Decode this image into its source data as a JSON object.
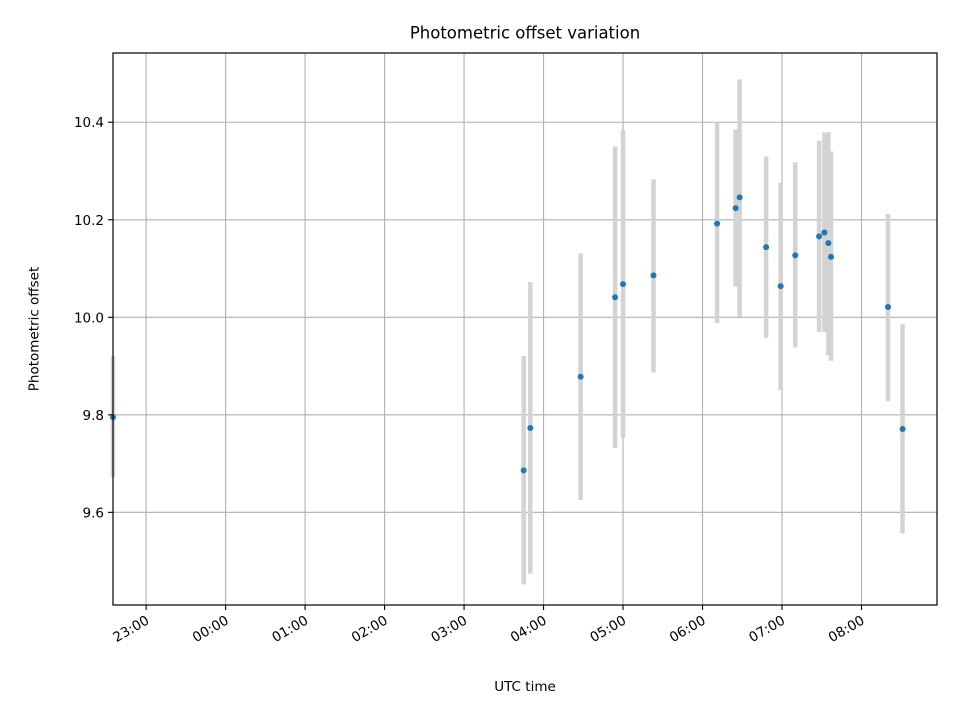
{
  "chart_data": {
    "type": "scatter",
    "title": "Photometric offset variation",
    "xlabel": "UTC time",
    "ylabel": "Photometric offset",
    "x_axis_type": "time",
    "xlim": [
      "22:35",
      "08:57"
    ],
    "ylim": [
      9.41,
      10.542
    ],
    "x_ticks": [
      "23:00",
      "00:00",
      "01:00",
      "02:00",
      "03:00",
      "04:00",
      "05:00",
      "06:00",
      "07:00",
      "08:00"
    ],
    "y_ticks": [
      9.6,
      9.8,
      10.0,
      10.2,
      10.4
    ],
    "y_tick_labels": [
      "9.6",
      "9.8",
      "10.0",
      "10.2",
      "10.4"
    ],
    "grid": true,
    "marker_color": "#1f77b4",
    "errorbar_color": "#d3d3d3",
    "points": [
      {
        "time": "22:35",
        "y": 9.795,
        "ylow": 9.672,
        "yhigh": 9.92
      },
      {
        "time": "03:45",
        "y": 9.686,
        "ylow": 9.452,
        "yhigh": 9.921
      },
      {
        "time": "03:50",
        "y": 9.773,
        "ylow": 9.474,
        "yhigh": 10.072
      },
      {
        "time": "04:28",
        "y": 9.878,
        "ylow": 9.625,
        "yhigh": 10.131
      },
      {
        "time": "04:54",
        "y": 10.041,
        "ylow": 9.732,
        "yhigh": 10.35
      },
      {
        "time": "05:00",
        "y": 10.068,
        "ylow": 9.753,
        "yhigh": 10.384
      },
      {
        "time": "05:23",
        "y": 10.086,
        "ylow": 9.887,
        "yhigh": 10.283
      },
      {
        "time": "06:11",
        "y": 10.192,
        "ylow": 9.988,
        "yhigh": 10.4
      },
      {
        "time": "06:25",
        "y": 10.224,
        "ylow": 10.063,
        "yhigh": 10.385
      },
      {
        "time": "06:28",
        "y": 10.246,
        "ylow": 10.001,
        "yhigh": 10.488
      },
      {
        "time": "06:48",
        "y": 10.144,
        "ylow": 9.958,
        "yhigh": 10.33
      },
      {
        "time": "06:59",
        "y": 10.064,
        "ylow": 9.851,
        "yhigh": 10.276
      },
      {
        "time": "07:10",
        "y": 10.127,
        "ylow": 9.938,
        "yhigh": 10.318
      },
      {
        "time": "07:28",
        "y": 10.166,
        "ylow": 9.97,
        "yhigh": 10.362
      },
      {
        "time": "07:32",
        "y": 10.174,
        "ylow": 9.97,
        "yhigh": 10.379
      },
      {
        "time": "07:35",
        "y": 10.152,
        "ylow": 9.922,
        "yhigh": 10.38
      },
      {
        "time": "07:37",
        "y": 10.124,
        "ylow": 9.911,
        "yhigh": 10.34
      },
      {
        "time": "08:20",
        "y": 10.021,
        "ylow": 9.828,
        "yhigh": 10.212
      },
      {
        "time": "08:31",
        "y": 9.771,
        "ylow": 9.557,
        "yhigh": 9.986
      }
    ]
  }
}
